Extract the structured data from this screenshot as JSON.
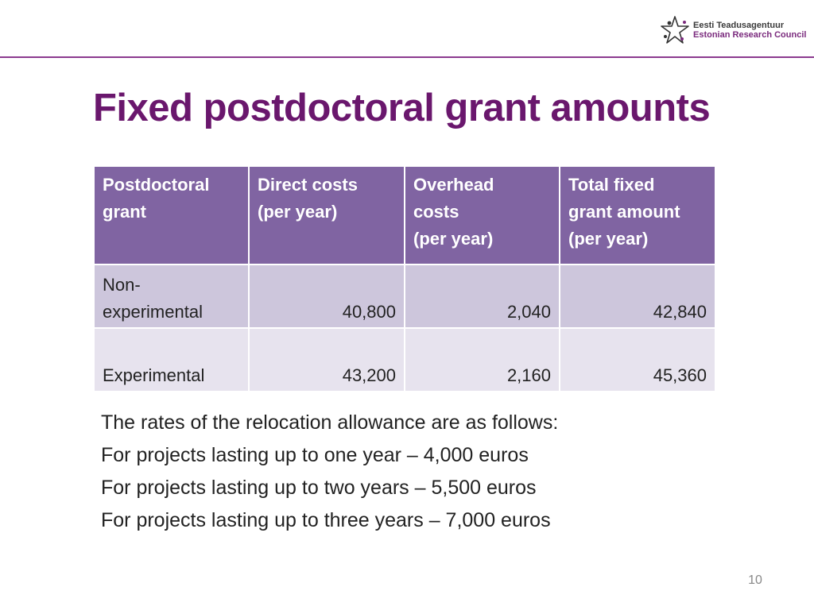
{
  "logo": {
    "line1": "Eesti Teadusagentuur",
    "line2": "Estonian Research Council"
  },
  "title": "Fixed postdoctoral grant amounts",
  "table": {
    "headers": [
      [
        "Postdoctoral",
        "grant"
      ],
      [
        "Direct costs",
        "(per year)"
      ],
      [
        "Overhead",
        "costs",
        "(per year)"
      ],
      [
        "Total fixed",
        "grant amount",
        "(per year)"
      ]
    ],
    "rows": [
      {
        "label_lines": [
          "Non-",
          "experimental"
        ],
        "direct": "40,800",
        "overhead": "2,040",
        "total": "42,840"
      },
      {
        "label_lines": [
          "Experimental"
        ],
        "direct": "43,200",
        "overhead": "2,160",
        "total": "45,360"
      }
    ]
  },
  "notes": [
    "The rates of the relocation allowance are as follows:",
    "For projects lasting up to one year – 4,000 euros",
    "For projects lasting up to two years – 5,500 euros",
    "For projects lasting up to three years – 7,000 euros"
  ],
  "page_number": "10",
  "colors": {
    "title": "#6a176d",
    "header_bg": "#8064a2",
    "row1_bg": "#cdc6dc",
    "row2_bg": "#e7e3ee",
    "rule": "#8b3a8f"
  }
}
